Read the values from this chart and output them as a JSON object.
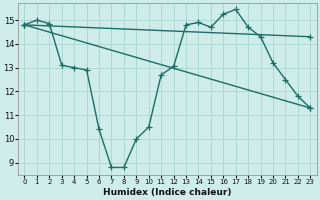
{
  "xlabel": "Humidex (Indice chaleur)",
  "bg_color": "#ceecea",
  "grid_color": "#aad4d0",
  "line_color": "#1a6e64",
  "xlim": [
    -0.5,
    23.5
  ],
  "ylim": [
    8.5,
    15.7
  ],
  "yticks": [
    9,
    10,
    11,
    12,
    13,
    14,
    15
  ],
  "xticks": [
    0,
    1,
    2,
    3,
    4,
    5,
    6,
    7,
    8,
    9,
    10,
    11,
    12,
    13,
    14,
    15,
    16,
    17,
    18,
    19,
    20,
    21,
    22,
    23
  ],
  "lines": [
    {
      "x": [
        0,
        1,
        2,
        3,
        4,
        5,
        6,
        7,
        8,
        9,
        10,
        11,
        12,
        13,
        14,
        15,
        16,
        17,
        18,
        19,
        20,
        21,
        22,
        23
      ],
      "y": [
        14.8,
        15.0,
        14.85,
        13.1,
        13.0,
        12.9,
        10.4,
        8.8,
        8.8,
        10.0,
        10.5,
        12.7,
        13.05,
        14.8,
        14.9,
        14.7,
        15.25,
        15.45,
        14.7,
        14.3,
        13.2,
        12.5,
        11.8,
        11.3
      ]
    },
    {
      "x": [
        0,
        23
      ],
      "y": [
        14.8,
        14.3
      ]
    },
    {
      "x": [
        0,
        23
      ],
      "y": [
        14.8,
        11.3
      ]
    }
  ],
  "marker": "+",
  "markersize": 4,
  "linewidth": 1.0
}
